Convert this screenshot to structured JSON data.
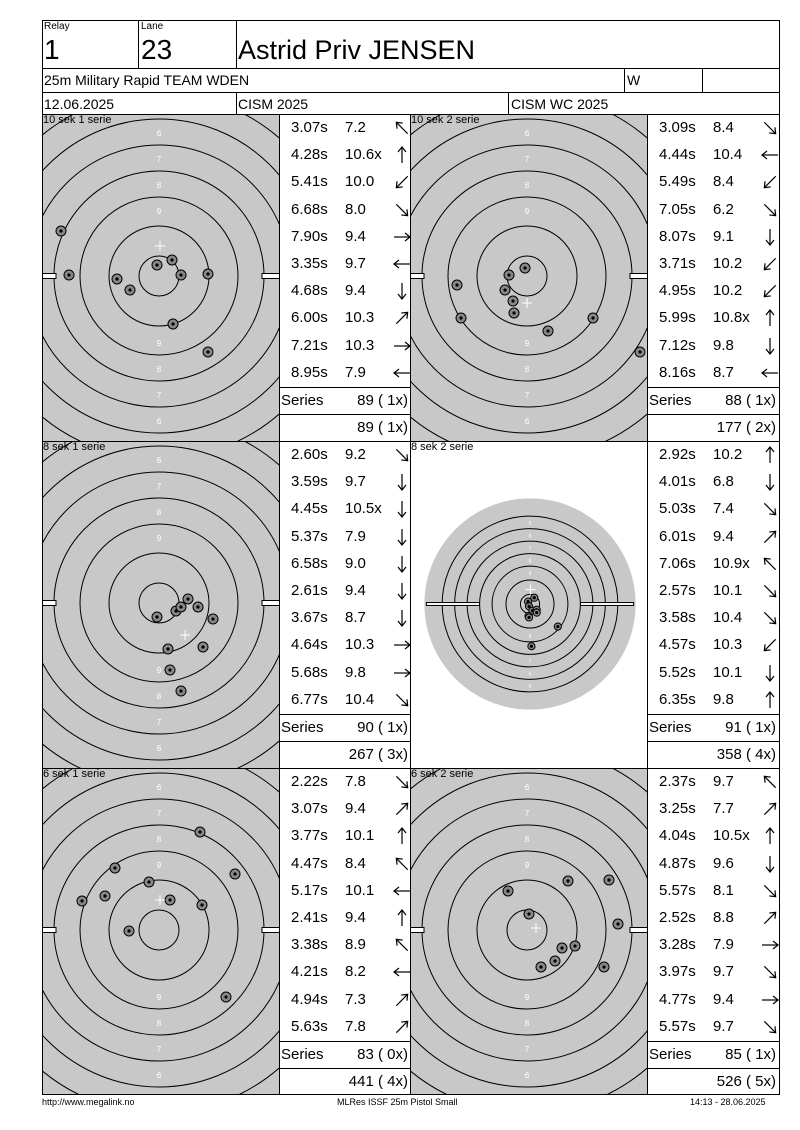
{
  "header": {
    "relay_label": "Relay",
    "relay": "1",
    "lane_label": "Lane",
    "lane": "23",
    "name": "Astrid Priv JENSEN",
    "event": "25m Military Rapid TEAM WDEN",
    "gender": "W",
    "date": "12.06.2025",
    "competition": "CISM 2025",
    "championship": "CISM WC 2025"
  },
  "panels": [
    {
      "title": "10 sek 1 serie",
      "target": "large",
      "shots": [
        {
          "time": "3.07s",
          "score": "7.2",
          "dir": "nw"
        },
        {
          "time": "4.28s",
          "score": "10.6x",
          "dir": "n"
        },
        {
          "time": "5.41s",
          "score": "10.0",
          "dir": "sw"
        },
        {
          "time": "6.68s",
          "score": "8.0",
          "dir": "se"
        },
        {
          "time": "7.90s",
          "score": "9.4",
          "dir": "e"
        },
        {
          "time": "3.35s",
          "score": "9.7",
          "dir": "w"
        },
        {
          "time": "4.68s",
          "score": "9.4",
          "dir": "s"
        },
        {
          "time": "6.00s",
          "score": "10.3",
          "dir": "ne"
        },
        {
          "time": "7.21s",
          "score": "10.3",
          "dir": "e"
        },
        {
          "time": "8.95s",
          "score": "7.9",
          "dir": "w"
        }
      ],
      "series_label": "Series",
      "series": "89 ( 1x)",
      "total": "89 ( 1x)"
    },
    {
      "title": "10 sek 2 serie",
      "target": "large",
      "shots": [
        {
          "time": "3.09s",
          "score": "8.4",
          "dir": "se"
        },
        {
          "time": "4.44s",
          "score": "10.4",
          "dir": "w"
        },
        {
          "time": "5.49s",
          "score": "8.4",
          "dir": "sw"
        },
        {
          "time": "7.05s",
          "score": "6.2",
          "dir": "se"
        },
        {
          "time": "8.07s",
          "score": "9.1",
          "dir": "s"
        },
        {
          "time": "3.71s",
          "score": "10.2",
          "dir": "sw"
        },
        {
          "time": "4.95s",
          "score": "10.2",
          "dir": "sw"
        },
        {
          "time": "5.99s",
          "score": "10.8x",
          "dir": "n"
        },
        {
          "time": "7.12s",
          "score": "9.8",
          "dir": "s"
        },
        {
          "time": "8.16s",
          "score": "8.7",
          "dir": "w"
        }
      ],
      "series_label": "Series",
      "series": "88 ( 1x)",
      "total": "177 ( 2x)"
    },
    {
      "title": "8 sek 1 serie",
      "target": "large",
      "shots": [
        {
          "time": "2.60s",
          "score": "9.2",
          "dir": "se"
        },
        {
          "time": "3.59s",
          "score": "9.7",
          "dir": "s"
        },
        {
          "time": "4.45s",
          "score": "10.5x",
          "dir": "s"
        },
        {
          "time": "5.37s",
          "score": "7.9",
          "dir": "s"
        },
        {
          "time": "6.58s",
          "score": "9.0",
          "dir": "s"
        },
        {
          "time": "2.61s",
          "score": "9.4",
          "dir": "s"
        },
        {
          "time": "3.67s",
          "score": "8.7",
          "dir": "s"
        },
        {
          "time": "4.64s",
          "score": "10.3",
          "dir": "e"
        },
        {
          "time": "5.68s",
          "score": "9.8",
          "dir": "e"
        },
        {
          "time": "6.77s",
          "score": "10.4",
          "dir": "se"
        }
      ],
      "series_label": "Series",
      "series": "90 ( 1x)",
      "total": "267 ( 3x)"
    },
    {
      "title": "8 sek 2 serie",
      "target": "small",
      "shots": [
        {
          "time": "2.92s",
          "score": "10.2",
          "dir": "n"
        },
        {
          "time": "4.01s",
          "score": "6.8",
          "dir": "s"
        },
        {
          "time": "5.03s",
          "score": "7.4",
          "dir": "se"
        },
        {
          "time": "6.01s",
          "score": "9.4",
          "dir": "ne"
        },
        {
          "time": "7.06s",
          "score": "10.9x",
          "dir": "nw"
        },
        {
          "time": "2.57s",
          "score": "10.1",
          "dir": "se"
        },
        {
          "time": "3.58s",
          "score": "10.4",
          "dir": "se"
        },
        {
          "time": "4.57s",
          "score": "10.3",
          "dir": "sw"
        },
        {
          "time": "5.52s",
          "score": "10.1",
          "dir": "s"
        },
        {
          "time": "6.35s",
          "score": "9.8",
          "dir": "n"
        }
      ],
      "series_label": "Series",
      "series": "91 ( 1x)",
      "total": "358 ( 4x)"
    },
    {
      "title": "6 sek 1 serie",
      "target": "large",
      "shots": [
        {
          "time": "2.22s",
          "score": "7.8",
          "dir": "se"
        },
        {
          "time": "3.07s",
          "score": "9.4",
          "dir": "ne"
        },
        {
          "time": "3.77s",
          "score": "10.1",
          "dir": "n"
        },
        {
          "time": "4.47s",
          "score": "8.4",
          "dir": "nw"
        },
        {
          "time": "5.17s",
          "score": "10.1",
          "dir": "w"
        },
        {
          "time": "2.41s",
          "score": "9.4",
          "dir": "n"
        },
        {
          "time": "3.38s",
          "score": "8.9",
          "dir": "nw"
        },
        {
          "time": "4.21s",
          "score": "8.2",
          "dir": "w"
        },
        {
          "time": "4.94s",
          "score": "7.3",
          "dir": "ne"
        },
        {
          "time": "5.63s",
          "score": "7.8",
          "dir": "ne"
        }
      ],
      "series_label": "Series",
      "series": "83 ( 0x)",
      "total": "441 ( 4x)"
    },
    {
      "title": "6 sek 2 serie",
      "target": "large",
      "shots": [
        {
          "time": "2.37s",
          "score": "9.7",
          "dir": "nw"
        },
        {
          "time": "3.25s",
          "score": "7.7",
          "dir": "ne"
        },
        {
          "time": "4.04s",
          "score": "10.5x",
          "dir": "n"
        },
        {
          "time": "4.87s",
          "score": "9.6",
          "dir": "s"
        },
        {
          "time": "5.57s",
          "score": "8.1",
          "dir": "se"
        },
        {
          "time": "2.52s",
          "score": "8.8",
          "dir": "ne"
        },
        {
          "time": "3.28s",
          "score": "7.9",
          "dir": "e"
        },
        {
          "time": "3.97s",
          "score": "9.7",
          "dir": "se"
        },
        {
          "time": "4.77s",
          "score": "9.4",
          "dir": "e"
        },
        {
          "time": "5.57s",
          "score": "9.7",
          "dir": "se"
        }
      ],
      "series_label": "Series",
      "series": "85 ( 1x)",
      "total": "526 ( 5x)"
    }
  ],
  "ring_labels_large": [
    "5",
    "6",
    "7",
    "8",
    "9"
  ],
  "footer": {
    "url": "http://www.megalink.no",
    "software": "MLRes ISSF 25m Pistol Small",
    "timestamp": "14:13 - 28.06.2025"
  },
  "colors": {
    "target_gray": "#c8c8c8",
    "line": "#000000"
  }
}
